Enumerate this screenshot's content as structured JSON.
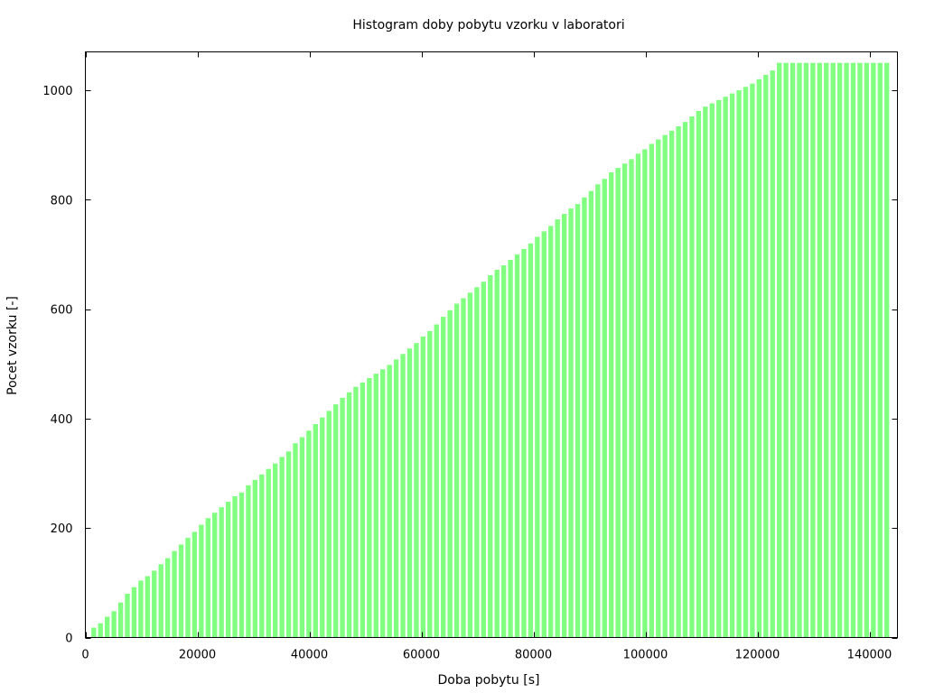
{
  "chart_data": {
    "type": "bar",
    "title": "Histogram doby pobytu vzorku v laboratori",
    "xlabel": "Doba pobytu [s]",
    "ylabel": "Pocet vzorku [-]",
    "xlim": [
      0,
      145000
    ],
    "ylim": [
      0,
      1070
    ],
    "xticks": [
      0,
      20000,
      40000,
      60000,
      80000,
      100000,
      120000,
      140000
    ],
    "xtick_labels": [
      "0",
      "20000",
      "40000",
      "60000",
      "80000",
      "100000",
      "120000",
      "140000"
    ],
    "yticks": [
      0,
      200,
      400,
      600,
      800,
      1000
    ],
    "ytick_labels": [
      "0",
      "200",
      "400",
      "600",
      "800",
      "1000"
    ],
    "grid": false,
    "legend": "none",
    "bar_color": "#80ff80",
    "bin_width": 1200,
    "x": [
      1500,
      2700,
      3900,
      5100,
      6300,
      7500,
      8700,
      9900,
      11100,
      12300,
      13500,
      14700,
      15900,
      17100,
      18300,
      19500,
      20700,
      21900,
      23100,
      24300,
      25500,
      26700,
      27900,
      29100,
      30300,
      31500,
      32700,
      33900,
      35100,
      36300,
      37500,
      38700,
      39900,
      41100,
      42300,
      43500,
      44700,
      45900,
      47100,
      48300,
      49500,
      50700,
      51900,
      53100,
      54300,
      55500,
      56700,
      57900,
      59100,
      60300,
      61500,
      62700,
      63900,
      65100,
      66300,
      67500,
      68700,
      69900,
      71100,
      72300,
      73500,
      74700,
      75900,
      77100,
      78300,
      79500,
      80700,
      81900,
      83100,
      84300,
      85500,
      86700,
      87900,
      89100,
      90300,
      91500,
      92700,
      93900,
      95100,
      96300,
      97500,
      98700,
      99900,
      101100,
      102300,
      103500,
      104700,
      105900,
      107100,
      108300,
      109500,
      110700,
      111900,
      113100,
      114300,
      115500,
      116700,
      117900,
      119100,
      120300,
      121500,
      122700,
      123900,
      125100,
      126300,
      127500,
      128700,
      129900,
      131100,
      132300,
      133500,
      134700,
      135900,
      137100,
      138300,
      139500,
      140700,
      141900,
      143100
    ],
    "values": [
      18,
      26,
      38,
      48,
      64,
      80,
      92,
      104,
      112,
      122,
      134,
      145,
      158,
      170,
      182,
      193,
      206,
      218,
      228,
      238,
      248,
      258,
      265,
      278,
      288,
      298,
      308,
      318,
      330,
      340,
      355,
      366,
      378,
      390,
      402,
      414,
      426,
      438,
      448,
      458,
      466,
      474,
      482,
      490,
      498,
      508,
      518,
      528,
      538,
      550,
      560,
      572,
      586,
      598,
      610,
      620,
      630,
      640,
      650,
      662,
      672,
      680,
      690,
      700,
      710,
      720,
      732,
      742,
      752,
      764,
      774,
      784,
      792,
      804,
      816,
      828,
      838,
      850,
      858,
      866,
      874,
      884,
      892,
      902,
      910,
      918,
      926,
      934,
      942,
      952,
      962,
      970,
      976,
      982,
      988,
      994,
      1000,
      1006,
      1012,
      1020,
      1028,
      1036,
      1050,
      1050,
      1050,
      1050,
      1050,
      1050,
      1050,
      1050,
      1050,
      1050,
      1050,
      1050,
      1050,
      1050,
      1050,
      1050,
      1050
    ]
  }
}
